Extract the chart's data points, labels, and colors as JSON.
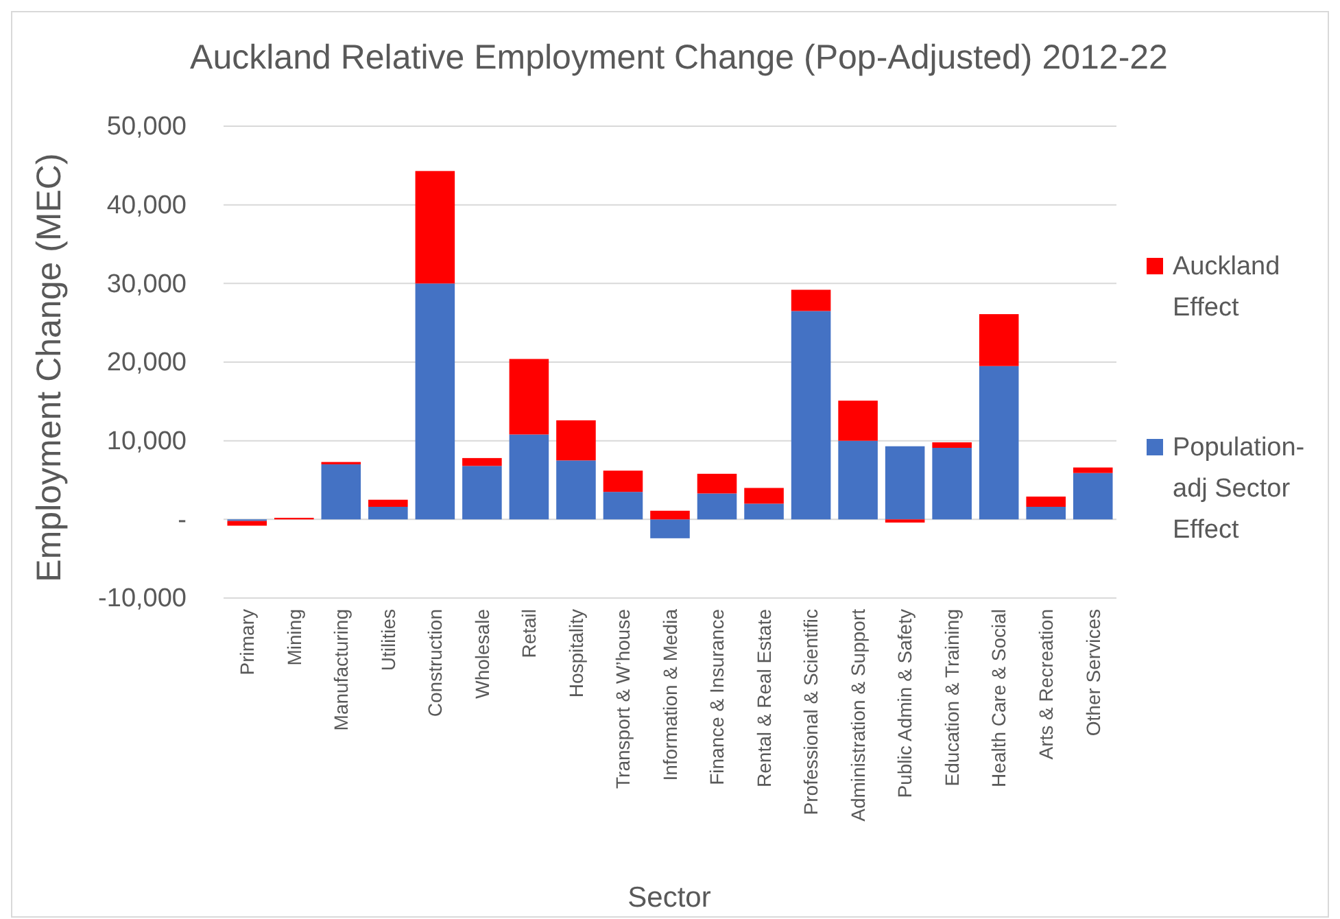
{
  "chart_data": {
    "type": "bar",
    "title": "Auckland Relative Employment Change (Pop-Adjusted) 2012-22",
    "xlabel": "Sector",
    "ylabel": "Employment Change (MEC)",
    "categories": [
      "Primary",
      "Mining",
      "Manufacturing",
      "Utilities",
      "Construction",
      "Wholesale",
      "Retail",
      "Hospitality",
      "Transport & W’house",
      "Information & Media",
      "Finance & Insurance",
      "Rental & Real Estate",
      "Professional & Scientific",
      "Administration & Support",
      "Public Admin & Safety",
      "Education & Training",
      "Health Care & Social",
      "Arts & Recreation",
      "Other Services"
    ],
    "series": [
      {
        "name": "Population-adj Sector Effect",
        "color": "#4472c4",
        "values": [
          -200,
          0,
          7000,
          1600,
          30000,
          6800,
          10800,
          7500,
          3500,
          -2400,
          3300,
          2000,
          26500,
          10000,
          9300,
          9100,
          19500,
          1600,
          5900
        ]
      },
      {
        "name": "Auckland Effect",
        "color": "#ff0000",
        "values": [
          -600,
          200,
          300,
          900,
          14300,
          1000,
          9600,
          5100,
          2700,
          1100,
          2500,
          2000,
          2700,
          5100,
          -400,
          700,
          6600,
          1300,
          700
        ]
      }
    ],
    "stacked": true,
    "ylim": [
      -10000,
      50000
    ],
    "yticks": [
      {
        "value": -10000,
        "label": "-10,000"
      },
      {
        "value": 0,
        "label": "-"
      },
      {
        "value": 10000,
        "label": "10,000"
      },
      {
        "value": 20000,
        "label": "20,000"
      },
      {
        "value": 30000,
        "label": "30,000"
      },
      {
        "value": 40000,
        "label": "40,000"
      },
      {
        "value": 50000,
        "label": "50,000"
      }
    ],
    "grid": "y",
    "legend": "right"
  }
}
